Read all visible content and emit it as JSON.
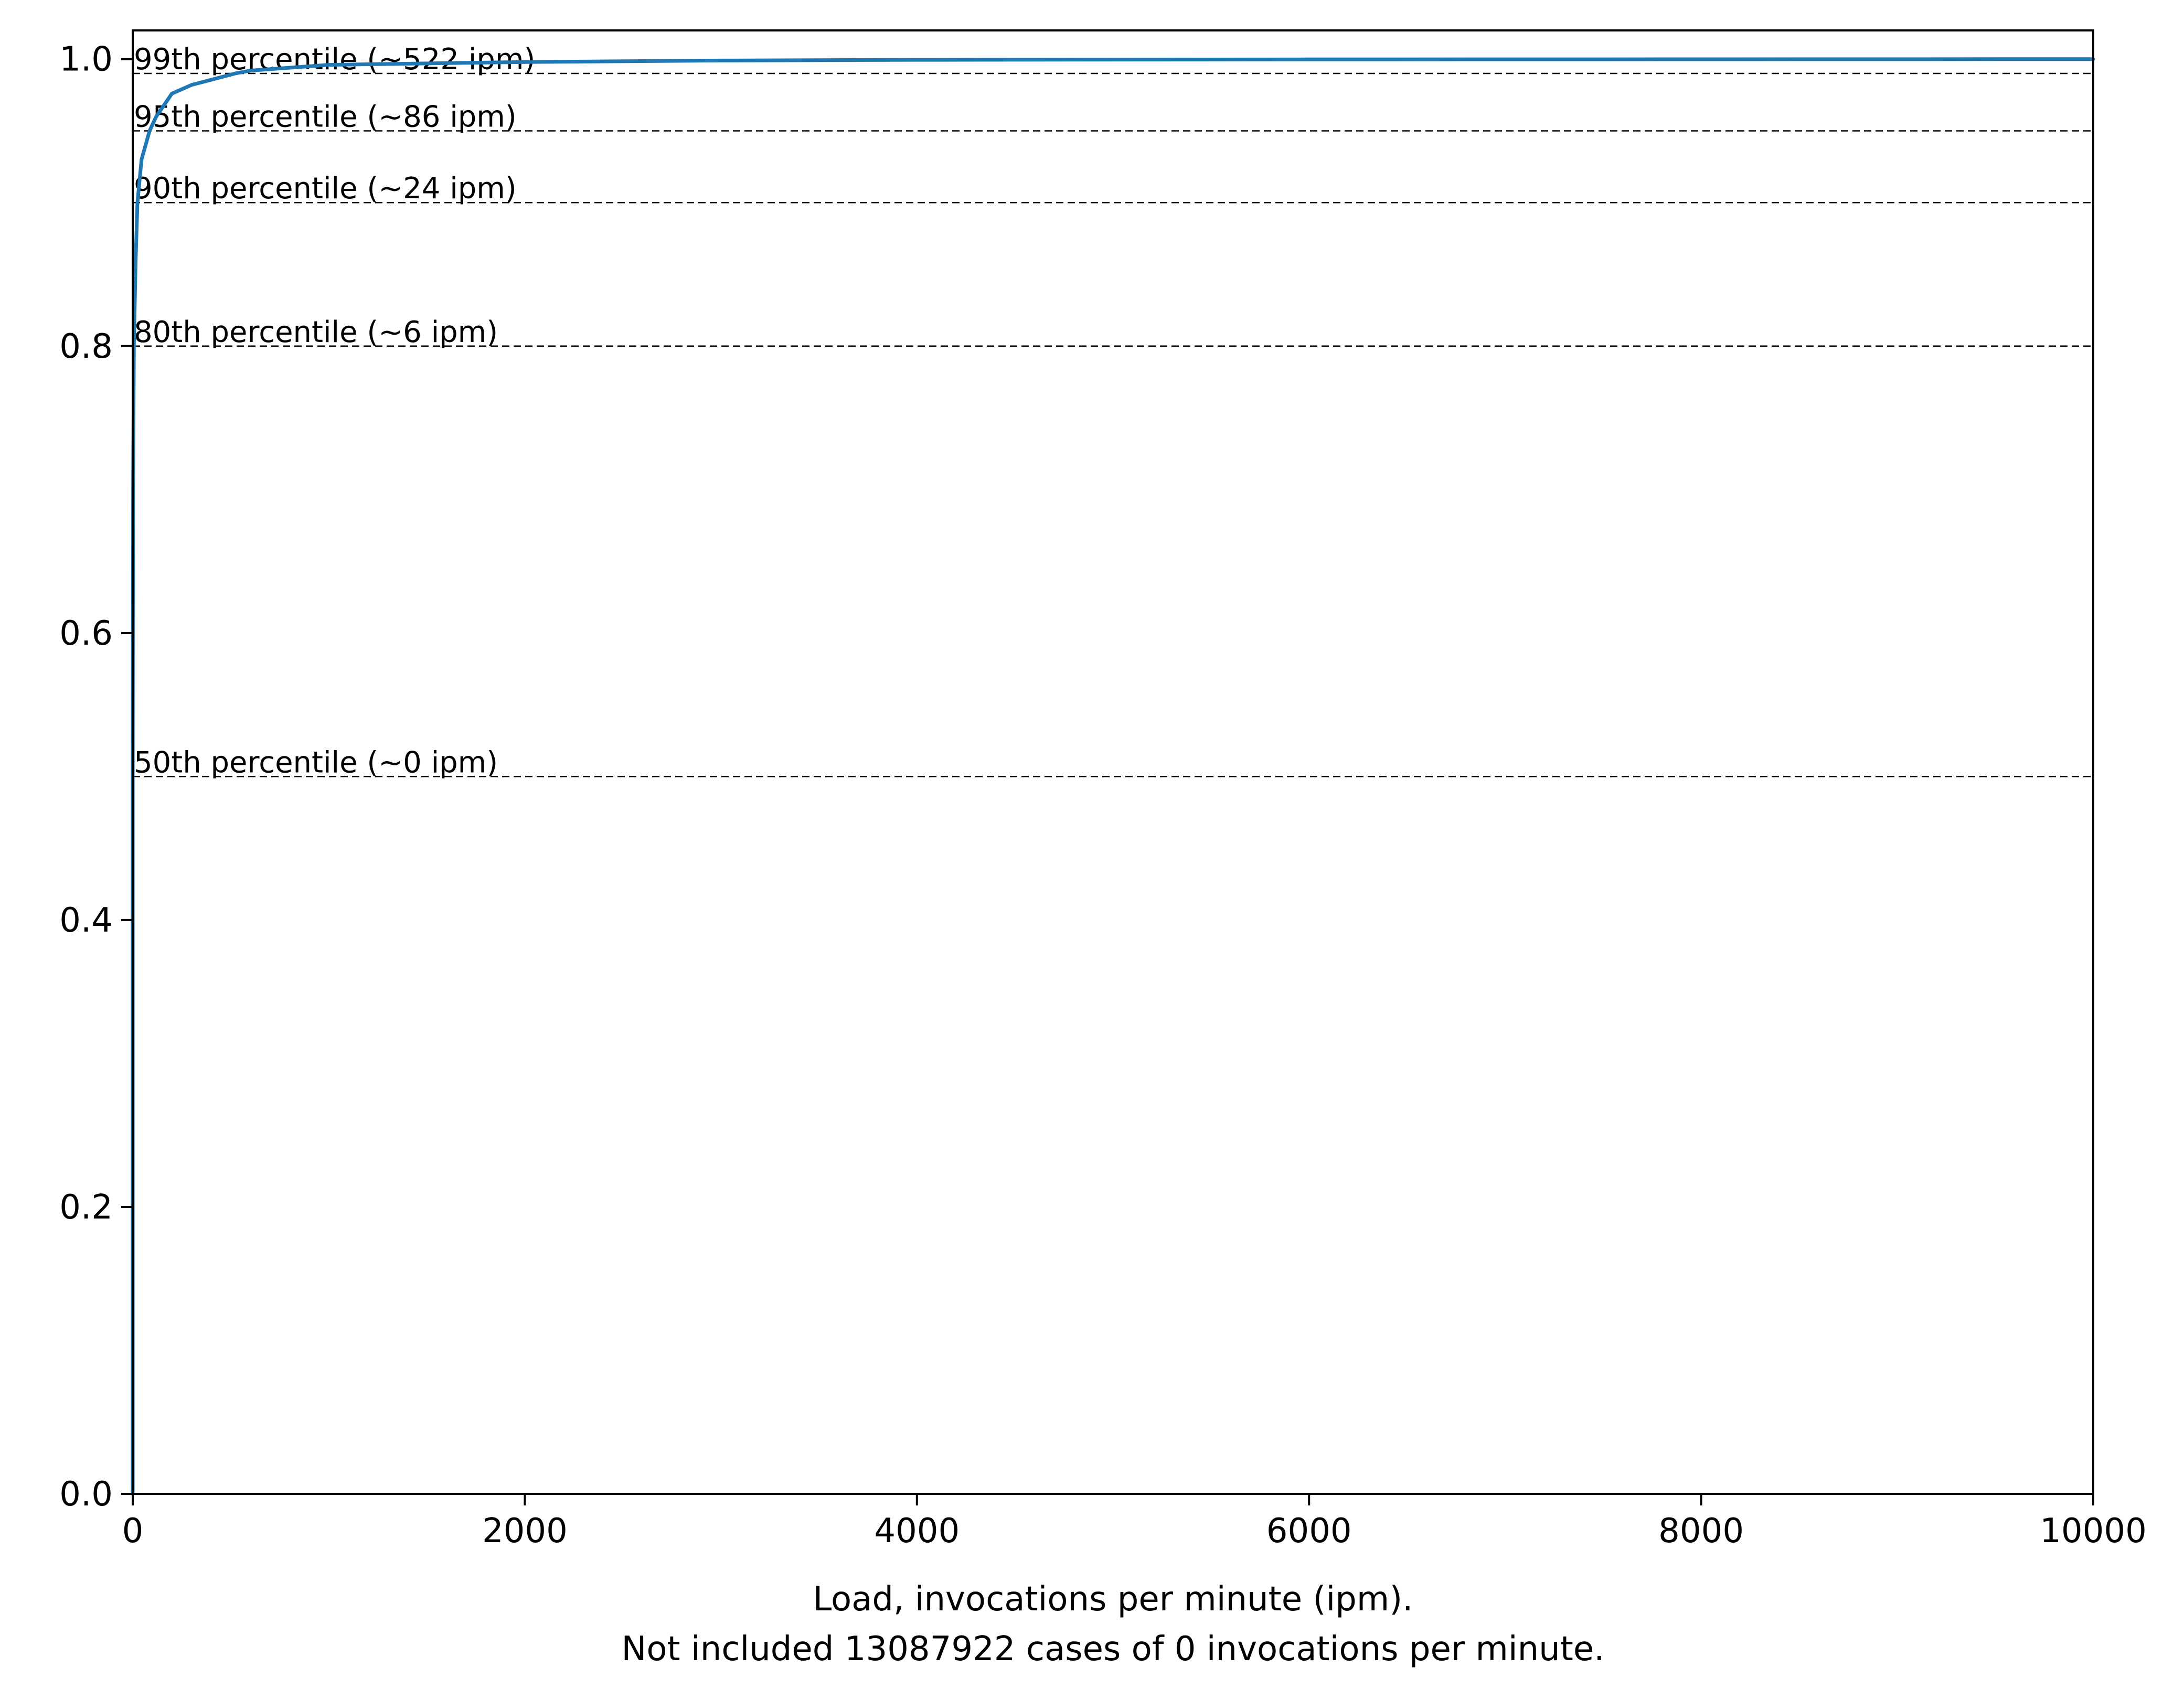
{
  "chart_data": {
    "type": "line",
    "title": "",
    "xlabel": "Load, invocations per minute (ipm).",
    "xlabel_note": "Not included 13087922 cases of 0 invocations per minute.",
    "ylabel": "",
    "xlim": [
      0,
      10000
    ],
    "ylim": [
      0,
      1.02
    ],
    "grid": false,
    "legend": "none",
    "x_ticks": [
      0,
      2000,
      4000,
      6000,
      8000,
      10000
    ],
    "x_tick_labels": [
      "0",
      "2000",
      "4000",
      "6000",
      "8000",
      "10000"
    ],
    "y_ticks": [
      0,
      0.2,
      0.4,
      0.6,
      0.8,
      1.0
    ],
    "y_tick_labels": [
      "0.0",
      "0.2",
      "0.4",
      "0.6",
      "0.8",
      "1.0"
    ],
    "series": [
      {
        "color": "#1f77b4",
        "x": [
          0,
          0,
          2,
          6,
          15,
          24,
          45,
          86,
          120,
          200,
          300,
          522,
          600,
          800,
          1000,
          1500,
          2000,
          3000,
          4000,
          6000,
          8000,
          10000
        ],
        "y": [
          0,
          0.5,
          0.7,
          0.8,
          0.86,
          0.9,
          0.93,
          0.95,
          0.96,
          0.976,
          0.982,
          0.99,
          0.992,
          0.994,
          0.996,
          0.997,
          0.998,
          0.999,
          0.9995,
          0.9998,
          0.9999,
          1.0
        ]
      }
    ],
    "reference_lines": [
      {
        "y": 0.99,
        "label": "99th percentile (~522 ipm)"
      },
      {
        "y": 0.95,
        "label": "95th percentile (~86 ipm)"
      },
      {
        "y": 0.9,
        "label": "90th percentile (~24 ipm)"
      },
      {
        "y": 0.8,
        "label": "80th percentile (~6 ipm)"
      },
      {
        "y": 0.5,
        "label": "50th percentile (~0 ipm)"
      }
    ]
  }
}
